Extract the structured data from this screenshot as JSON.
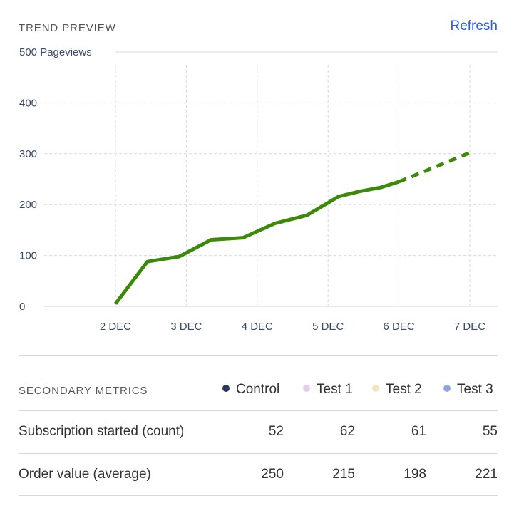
{
  "header": {
    "title": "TREND PREVIEW",
    "refresh_label": "Refresh"
  },
  "chart_data": {
    "type": "line",
    "ylabel": "Pageviews",
    "ylim": [
      0,
      500
    ],
    "yticks": [
      "0",
      "100",
      "200",
      "300",
      "400",
      "500 Pageviews"
    ],
    "xticks": [
      "2 DEC",
      "3 DEC",
      "4 DEC",
      "5 DEC",
      "6 DEC",
      "7 DEC"
    ],
    "xlim": [
      2,
      7
    ],
    "grid": true,
    "series": [
      {
        "color": "#3d8a0a",
        "x": [
          2.0,
          2.45,
          2.9,
          3.35,
          3.8,
          4.25,
          4.7,
          5.15,
          5.45,
          5.75,
          6.0
        ],
        "values": [
          5,
          88,
          98,
          131,
          135,
          163,
          179,
          216,
          226,
          234,
          245
        ]
      },
      {
        "color": "#3d8a0a",
        "style": "dashed",
        "x": [
          6.0,
          7.0
        ],
        "values": [
          245,
          302
        ]
      }
    ]
  },
  "metrics": {
    "title": "SECONDARY METRICS",
    "legend": [
      {
        "label": "Control",
        "color": "#2b3658"
      },
      {
        "label": "Test 1",
        "color": "#e5cbee"
      },
      {
        "label": "Test 2",
        "color": "#f7e4bd"
      },
      {
        "label": "Test 3",
        "color": "#8fa6e6"
      }
    ],
    "rows": [
      {
        "label": "Subscription started (count)",
        "values": [
          "52",
          "62",
          "61",
          "55"
        ]
      },
      {
        "label": "Order value (average)",
        "values": [
          "250",
          "215",
          "198",
          "221"
        ]
      }
    ]
  }
}
